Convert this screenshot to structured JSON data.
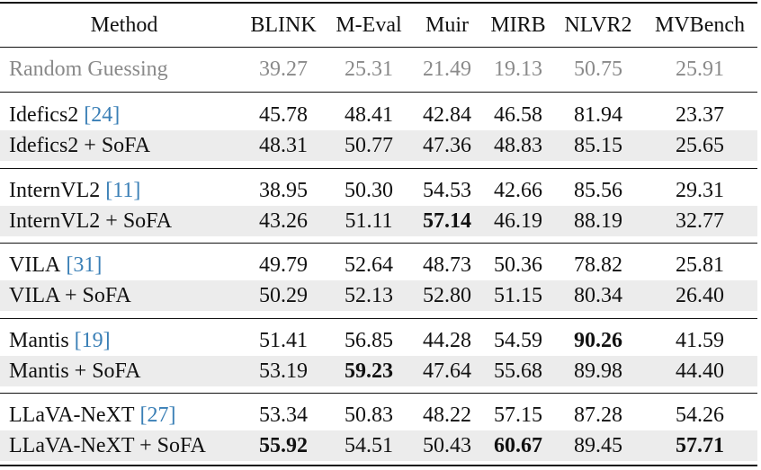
{
  "table": {
    "header": [
      "Method",
      "BLINK",
      "M-Eval",
      "Muir",
      "MIRB",
      "NLVR2",
      "MVBench"
    ],
    "baseline": {
      "method": "Random Guessing",
      "values": [
        "39.27",
        "25.31",
        "21.49",
        "19.13",
        "50.75",
        "25.91"
      ]
    },
    "groups": [
      [
        {
          "method": "Idefics2",
          "cite": "[24]",
          "values": [
            "45.78",
            "48.41",
            "42.84",
            "46.58",
            "81.94",
            "23.37"
          ]
        },
        {
          "method": "Idefics2 + SoFA",
          "values": [
            "48.31",
            "50.77",
            "47.36",
            "48.83",
            "85.15",
            "25.65"
          ]
        }
      ],
      [
        {
          "method": "InternVL2",
          "cite": "[11]",
          "values": [
            "38.95",
            "50.30",
            "54.53",
            "42.66",
            "85.56",
            "29.31"
          ]
        },
        {
          "method": "InternVL2 + SoFA",
          "values": [
            "43.26",
            "51.11",
            "57.14",
            "46.19",
            "88.19",
            "32.77"
          ],
          "bold": [
            2
          ]
        }
      ],
      [
        {
          "method": "VILA",
          "cite": "[31]",
          "values": [
            "49.79",
            "52.64",
            "48.73",
            "50.36",
            "78.82",
            "25.81"
          ]
        },
        {
          "method": "VILA + SoFA",
          "values": [
            "50.29",
            "52.13",
            "52.80",
            "51.15",
            "80.34",
            "26.40"
          ]
        }
      ],
      [
        {
          "method": "Mantis",
          "cite": "[19]",
          "values": [
            "51.41",
            "56.85",
            "44.28",
            "54.59",
            "90.26",
            "41.59"
          ],
          "bold": [
            4
          ]
        },
        {
          "method": "Mantis + SoFA",
          "values": [
            "53.19",
            "59.23",
            "47.64",
            "55.68",
            "89.98",
            "44.40"
          ],
          "bold": [
            1
          ]
        }
      ],
      [
        {
          "method": "LLaVA-NeXT",
          "cite": "[27]",
          "values": [
            "53.34",
            "50.83",
            "48.22",
            "57.15",
            "87.28",
            "54.26"
          ]
        },
        {
          "method": "LLaVA-NeXT + SoFA",
          "values": [
            "55.92",
            "54.51",
            "50.43",
            "60.67",
            "89.45",
            "57.71"
          ],
          "bold": [
            0,
            3,
            5
          ]
        }
      ]
    ]
  }
}
